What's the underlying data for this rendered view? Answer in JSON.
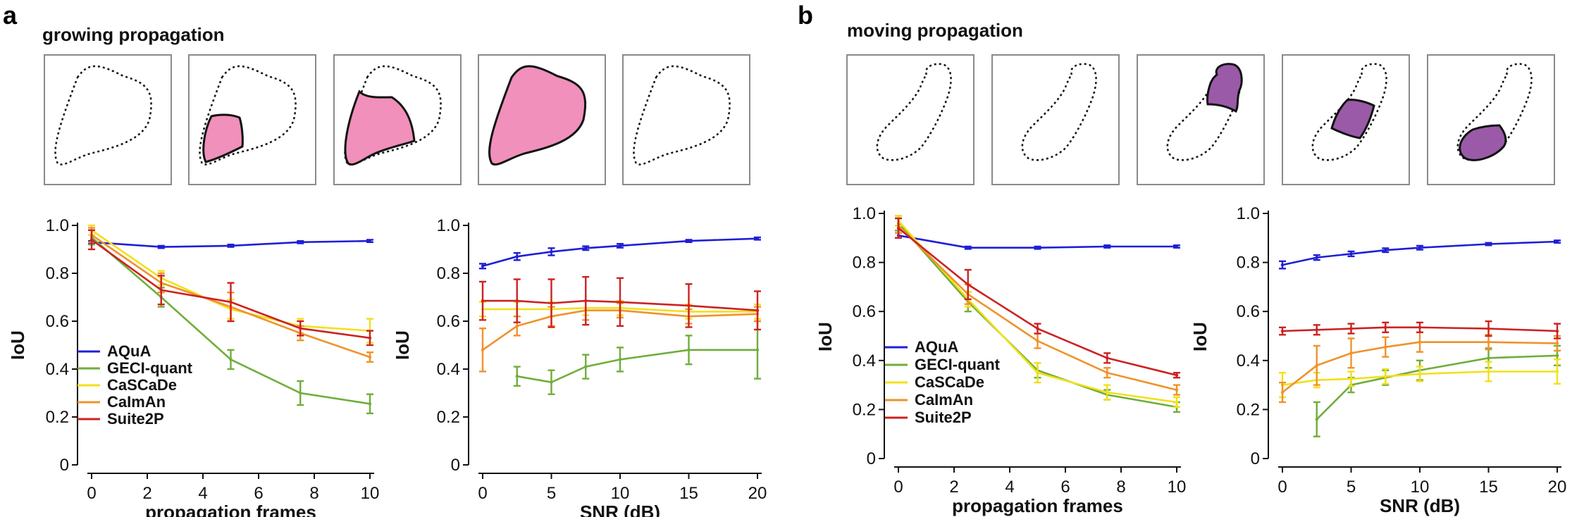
{
  "panels": [
    {
      "letter": "a",
      "title": "growing propagation"
    },
    {
      "letter": "b",
      "title": "moving propagation"
    }
  ],
  "colors": {
    "AQuA": "#1f1fd6",
    "GECI-quant": "#6fae3a",
    "CaSCaDe": "#f2e01a",
    "CaImAn": "#f0922a",
    "Suite2P": "#cc2222",
    "growing_fill": "#f090bb",
    "moving_fill": "#9a5aa8",
    "frame_border": "#8a8a8a"
  },
  "chart_data": [
    {
      "type": "line",
      "panel": "a",
      "xlabel": "propagation frames",
      "ylabel": "IoU",
      "xlim": [
        0,
        10
      ],
      "ylim": [
        0,
        1.0
      ],
      "xticks": [
        0,
        2,
        4,
        6,
        8,
        10
      ],
      "yticks": [
        0,
        0.2,
        0.4,
        0.6,
        0.8,
        1.0
      ],
      "ytick_labels": [
        "0",
        "0.2",
        "0.4",
        "0.6",
        "0.8",
        "1.0"
      ],
      "legend": [
        "AQuA",
        "GECI-quant",
        "CaSCaDe",
        "CaImAn",
        "Suite2P"
      ],
      "legend_position": "bottom-left",
      "x": [
        0,
        2.5,
        5,
        7.5,
        10
      ],
      "series": [
        {
          "name": "AQuA",
          "values": [
            0.93,
            0.91,
            0.915,
            0.93,
            0.935
          ],
          "err": [
            0.005,
            0.005,
            0.005,
            0.005,
            0.005
          ]
        },
        {
          "name": "GECI-quant",
          "values": [
            0.95,
            0.7,
            0.44,
            0.3,
            0.255
          ],
          "err": [
            0.03,
            0.04,
            0.04,
            0.05,
            0.04
          ]
        },
        {
          "name": "CaSCaDe",
          "values": [
            0.98,
            0.78,
            0.65,
            0.58,
            0.56
          ],
          "err": [
            0.02,
            0.03,
            0.04,
            0.03,
            0.05
          ]
        },
        {
          "name": "CaImAn",
          "values": [
            0.96,
            0.76,
            0.66,
            0.55,
            0.45
          ],
          "err": [
            0.03,
            0.04,
            0.06,
            0.03,
            0.02
          ]
        },
        {
          "name": "Suite2P",
          "values": [
            0.94,
            0.73,
            0.68,
            0.57,
            0.53
          ],
          "err": [
            0.04,
            0.06,
            0.08,
            0.03,
            0.03
          ]
        }
      ]
    },
    {
      "type": "line",
      "panel": "a",
      "xlabel": "SNR (dB)",
      "ylabel": "IoU",
      "xlim": [
        0,
        20
      ],
      "ylim": [
        0,
        1.0
      ],
      "xticks": [
        0,
        5,
        10,
        15,
        20
      ],
      "yticks": [
        0,
        0.2,
        0.4,
        0.6,
        0.8,
        1.0
      ],
      "ytick_labels": [
        "0",
        "0.2",
        "0.4",
        "0.6",
        "0.8",
        "1.0"
      ],
      "series": [
        {
          "name": "AQuA",
          "x": [
            0,
            2.5,
            5,
            7.5,
            10,
            15,
            20
          ],
          "values": [
            0.83,
            0.87,
            0.89,
            0.905,
            0.915,
            0.935,
            0.945
          ],
          "err": [
            0.01,
            0.015,
            0.015,
            0.008,
            0.008,
            0.005,
            0.005
          ]
        },
        {
          "name": "GECI-quant",
          "x": [
            2.5,
            5,
            7.5,
            10,
            15,
            20
          ],
          "values": [
            0.37,
            0.345,
            0.41,
            0.44,
            0.48,
            0.48
          ],
          "err": [
            0.04,
            0.05,
            0.05,
            0.05,
            0.06,
            0.12
          ]
        },
        {
          "name": "CaSCaDe",
          "x": [
            0,
            2.5,
            5,
            7.5,
            10,
            15,
            20
          ],
          "values": [
            0.65,
            0.65,
            0.65,
            0.655,
            0.655,
            0.64,
            0.64
          ],
          "err": [
            0.03,
            0.03,
            0.03,
            0.03,
            0.03,
            0.03,
            0.03
          ]
        },
        {
          "name": "CaImAn",
          "x": [
            0,
            2.5,
            5,
            7.5,
            10,
            15,
            20
          ],
          "values": [
            0.48,
            0.58,
            0.62,
            0.645,
            0.645,
            0.62,
            0.63
          ],
          "err": [
            0.09,
            0.04,
            0.04,
            0.04,
            0.03,
            0.03,
            0.03
          ]
        },
        {
          "name": "Suite2P",
          "x": [
            0,
            2.5,
            5,
            7.5,
            10,
            15,
            20
          ],
          "values": [
            0.685,
            0.685,
            0.675,
            0.685,
            0.68,
            0.665,
            0.645
          ],
          "err": [
            0.08,
            0.09,
            0.1,
            0.1,
            0.1,
            0.09,
            0.08
          ]
        }
      ]
    },
    {
      "type": "line",
      "panel": "b",
      "xlabel": "propagation frames",
      "ylabel": "IoU",
      "xlim": [
        0,
        10
      ],
      "ylim": [
        0,
        1.0
      ],
      "xticks": [
        0,
        2,
        4,
        6,
        8,
        10
      ],
      "yticks": [
        0,
        0.2,
        0.4,
        0.6,
        0.8,
        1.0
      ],
      "ytick_labels": [
        "0",
        "0.2",
        "0.4",
        "0.6",
        "0.8",
        "1.0"
      ],
      "legend": [
        "AQuA",
        "GECI-quant",
        "CaSCaDe",
        "CaImAn",
        "Suite2P"
      ],
      "legend_position": "bottom-left",
      "x": [
        0,
        2.5,
        5,
        7.5,
        10
      ],
      "series": [
        {
          "name": "AQuA",
          "values": [
            0.91,
            0.86,
            0.86,
            0.865,
            0.865
          ],
          "err": [
            0.01,
            0.005,
            0.005,
            0.005,
            0.005
          ]
        },
        {
          "name": "GECI-quant",
          "values": [
            0.96,
            0.64,
            0.36,
            0.26,
            0.21
          ],
          "err": [
            0.03,
            0.04,
            0.03,
            0.02,
            0.02
          ]
        },
        {
          "name": "CaSCaDe",
          "values": [
            0.97,
            0.65,
            0.35,
            0.27,
            0.23
          ],
          "err": [
            0.02,
            0.03,
            0.04,
            0.03,
            0.02
          ]
        },
        {
          "name": "CaImAn",
          "values": [
            0.95,
            0.67,
            0.48,
            0.35,
            0.28
          ],
          "err": [
            0.03,
            0.04,
            0.03,
            0.02,
            0.02
          ]
        },
        {
          "name": "Suite2P",
          "values": [
            0.94,
            0.71,
            0.53,
            0.41,
            0.34
          ],
          "err": [
            0.04,
            0.06,
            0.02,
            0.02,
            0.01
          ]
        }
      ]
    },
    {
      "type": "line",
      "panel": "b",
      "xlabel": "SNR (dB)",
      "ylabel": "IoU",
      "xlim": [
        0,
        20
      ],
      "ylim": [
        0,
        1.0
      ],
      "xticks": [
        0,
        5,
        10,
        15,
        20
      ],
      "yticks": [
        0,
        0.2,
        0.4,
        0.6,
        0.8,
        1.0
      ],
      "ytick_labels": [
        "0",
        "0.2",
        "0.4",
        "0.6",
        "0.8",
        "1.0"
      ],
      "series": [
        {
          "name": "AQuA",
          "x": [
            0,
            2.5,
            5,
            7.5,
            10,
            15,
            20
          ],
          "values": [
            0.79,
            0.82,
            0.835,
            0.85,
            0.86,
            0.875,
            0.885
          ],
          "err": [
            0.015,
            0.01,
            0.01,
            0.008,
            0.008,
            0.005,
            0.005
          ]
        },
        {
          "name": "GECI-quant",
          "x": [
            2.5,
            5,
            7.5,
            10,
            15,
            20
          ],
          "values": [
            0.16,
            0.3,
            0.33,
            0.36,
            0.41,
            0.42
          ],
          "err": [
            0.07,
            0.03,
            0.03,
            0.04,
            0.04,
            0.04
          ]
        },
        {
          "name": "CaSCaDe",
          "x": [
            0,
            2.5,
            5,
            7.5,
            10,
            15,
            20
          ],
          "values": [
            0.3,
            0.32,
            0.325,
            0.335,
            0.345,
            0.355,
            0.355
          ],
          "err": [
            0.05,
            0.03,
            0.03,
            0.03,
            0.03,
            0.04,
            0.05
          ]
        },
        {
          "name": "CaImAn",
          "x": [
            0,
            2.5,
            5,
            7.5,
            10,
            15,
            20
          ],
          "values": [
            0.27,
            0.38,
            0.43,
            0.455,
            0.475,
            0.475,
            0.47
          ],
          "err": [
            0.04,
            0.08,
            0.06,
            0.04,
            0.04,
            0.03,
            0.03
          ]
        },
        {
          "name": "Suite2P",
          "x": [
            0,
            2.5,
            5,
            7.5,
            10,
            15,
            20
          ],
          "values": [
            0.52,
            0.525,
            0.53,
            0.535,
            0.535,
            0.53,
            0.52
          ],
          "err": [
            0.015,
            0.02,
            0.02,
            0.02,
            0.02,
            0.03,
            0.03
          ]
        }
      ]
    }
  ]
}
